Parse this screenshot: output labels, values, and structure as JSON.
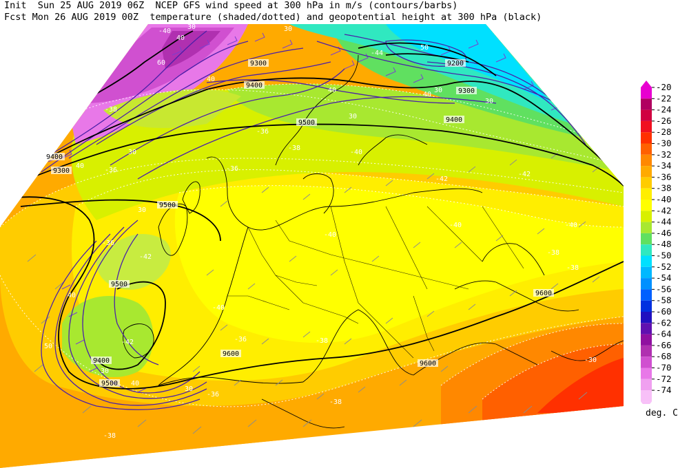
{
  "header": {
    "line1": "Init  Sun 25 AUG 2019 06Z  NCEP GFS wind speed at 300 hPa in m/s (contours/barbs)",
    "line2": "Fcst Mon 26 AUG 2019 00Z  temperature (shaded/dotted) and geopotential height at 300 hPa (black)"
  },
  "legend": {
    "unit": "deg. C",
    "entries": [
      {
        "label": "-20",
        "color": "#e800d0"
      },
      {
        "label": "-22",
        "color": "#b00060"
      },
      {
        "label": "-24",
        "color": "#d00040"
      },
      {
        "label": "-26",
        "color": "#f01020"
      },
      {
        "label": "-28",
        "color": "#ff3000"
      },
      {
        "label": "-30",
        "color": "#ff6000"
      },
      {
        "label": "-32",
        "color": "#ff8800"
      },
      {
        "label": "-34",
        "color": "#ffaa00"
      },
      {
        "label": "-36",
        "color": "#ffcc00"
      },
      {
        "label": "-38",
        "color": "#ffee00"
      },
      {
        "label": "-40",
        "color": "#ffff00"
      },
      {
        "label": "-42",
        "color": "#d8f000"
      },
      {
        "label": "-44",
        "color": "#a8e830"
      },
      {
        "label": "-46",
        "color": "#60e060"
      },
      {
        "label": "-48",
        "color": "#30e8c0"
      },
      {
        "label": "-50",
        "color": "#00e0ff"
      },
      {
        "label": "-52",
        "color": "#00b8ff"
      },
      {
        "label": "-54",
        "color": "#0090ff"
      },
      {
        "label": "-56",
        "color": "#0060ff"
      },
      {
        "label": "-58",
        "color": "#0030e0"
      },
      {
        "label": "-60",
        "color": "#2010c0"
      },
      {
        "label": "-62",
        "color": "#6010b0"
      },
      {
        "label": "-64",
        "color": "#9010a0"
      },
      {
        "label": "-66",
        "color": "#b030b0"
      },
      {
        "label": "-68",
        "color": "#d050d0"
      },
      {
        "label": "-70",
        "color": "#e878e8"
      },
      {
        "label": "-72",
        "color": "#f0a0f0"
      },
      {
        "label": "-74",
        "color": "#f8c0f8"
      }
    ]
  },
  "map": {
    "height_labels": [
      "9300",
      "9400",
      "9500",
      "9500",
      "9600",
      "9400",
      "9200",
      "9300",
      "9400",
      "9500",
      "9600",
      "9600",
      "9400",
      "9500",
      "9300"
    ],
    "temp_labels": [
      "-40",
      "-38",
      "-36",
      "-36",
      "-36",
      "-38",
      "-40",
      "-42",
      "-42",
      "-40",
      "-40",
      "-40",
      "-42",
      "-38",
      "-38",
      "-36",
      "-38",
      "-36",
      "-34",
      "-30",
      "-38",
      "-42",
      "-40",
      "-44",
      "-36",
      "-38"
    ],
    "wind_labels": [
      "30",
      "40",
      "40",
      "30",
      "40",
      "30",
      "30",
      "40",
      "30",
      "40",
      "30",
      "50",
      "30",
      "40",
      "30",
      "30",
      "40",
      "50",
      "60"
    ],
    "colors": {
      "height_contour": "#000000",
      "wind_contour": "#4a1fa8",
      "temp_dotted": "#ffffff",
      "coastline": "#000000",
      "border": "#000000"
    }
  }
}
